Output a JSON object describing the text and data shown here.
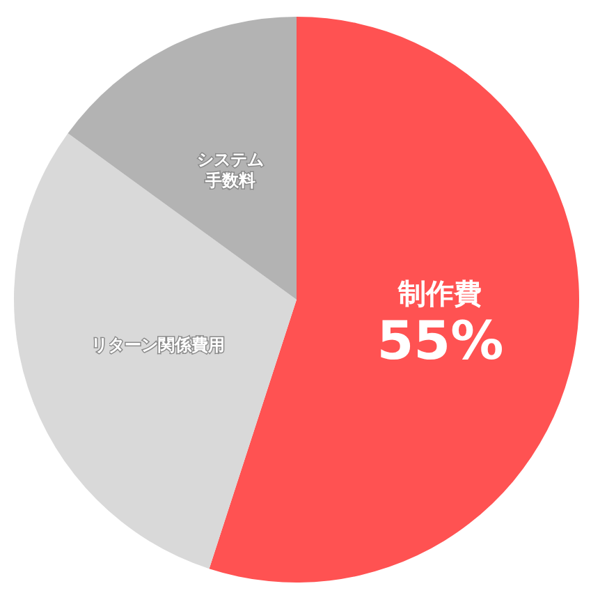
{
  "chart_data": {
    "type": "pie",
    "categories": [
      "制作費",
      "リターン関係費用",
      "システム手数料"
    ],
    "values": [
      55,
      30,
      15
    ],
    "colors": [
      "#ff5252",
      "#d9d9d9",
      "#b3b3b3"
    ],
    "value_labels": [
      "55%",
      null,
      null
    ],
    "legend": false
  }
}
